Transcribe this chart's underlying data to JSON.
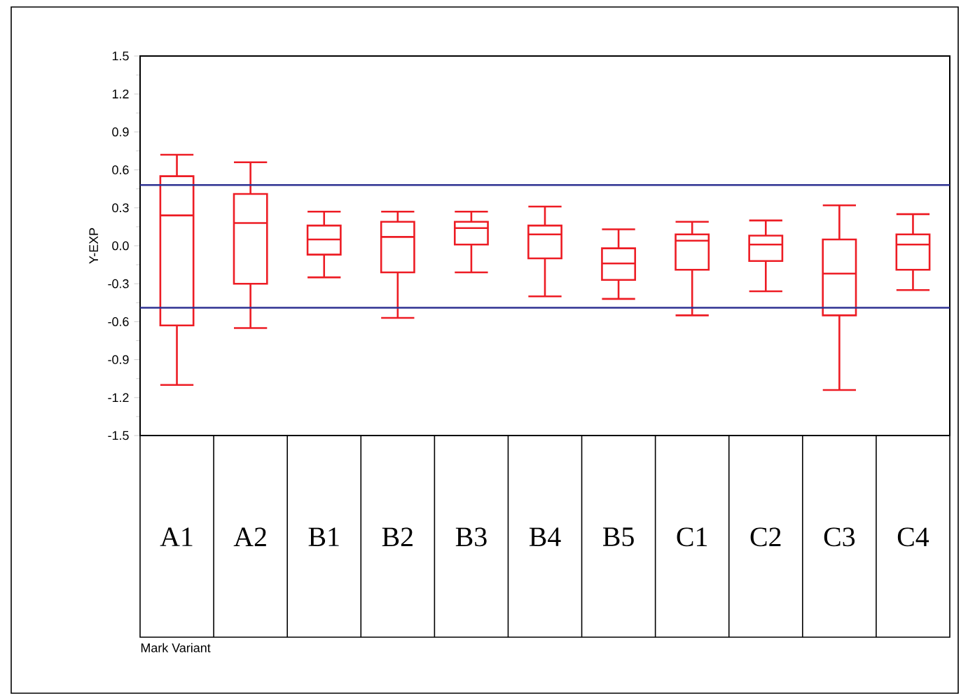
{
  "chart_data": {
    "type": "box",
    "annotations": [
      "Mark Variant"
    ],
    "ylabel": "Y-EXP",
    "categories": [
      "A1",
      "A2",
      "B1",
      "B2",
      "B3",
      "B4",
      "B5",
      "C1",
      "C2",
      "C3",
      "C4"
    ],
    "color": "#ed1c24",
    "boxes": [
      {
        "low": -1.1,
        "q1": -0.63,
        "median": 0.24,
        "q3": 0.55,
        "high": 0.72
      },
      {
        "low": -0.65,
        "q1": -0.3,
        "median": 0.18,
        "q3": 0.41,
        "high": 0.66
      },
      {
        "low": -0.25,
        "q1": -0.07,
        "median": 0.05,
        "q3": 0.16,
        "high": 0.27
      },
      {
        "low": -0.57,
        "q1": -0.21,
        "median": 0.07,
        "q3": 0.19,
        "high": 0.27
      },
      {
        "low": -0.21,
        "q1": 0.01,
        "median": 0.14,
        "q3": 0.19,
        "high": 0.27
      },
      {
        "low": -0.4,
        "q1": -0.1,
        "median": 0.09,
        "q3": 0.16,
        "high": 0.31
      },
      {
        "low": -0.42,
        "q1": -0.27,
        "median": -0.14,
        "q3": -0.02,
        "high": 0.13
      },
      {
        "low": -0.55,
        "q1": -0.19,
        "median": 0.04,
        "q3": 0.09,
        "high": 0.19
      },
      {
        "low": -0.36,
        "q1": -0.12,
        "median": 0.01,
        "q3": 0.08,
        "high": 0.2
      },
      {
        "low": -1.14,
        "q1": -0.55,
        "median": -0.22,
        "q3": 0.05,
        "high": 0.32
      },
      {
        "low": -0.35,
        "q1": -0.19,
        "median": 0.01,
        "q3": 0.09,
        "high": 0.25
      }
    ],
    "ylim": [
      -1.5,
      1.5
    ],
    "yticks": [
      -1.5,
      -1.2,
      -0.9,
      -0.6,
      -0.3,
      {
        "value": 0,
        "label": "0.0"
      },
      0.3,
      0.6,
      0.9,
      1.2,
      1.5
    ],
    "ref_lines": [
      {
        "axis": "y",
        "value": 0.48,
        "color": "#2e3192"
      },
      {
        "axis": "y",
        "value": -0.49,
        "color": "#2e3192"
      }
    ]
  }
}
